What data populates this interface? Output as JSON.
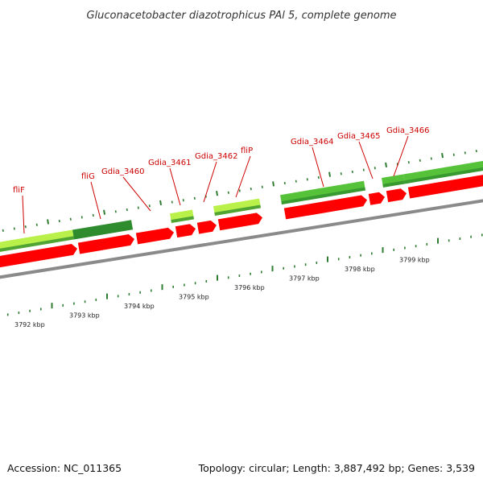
{
  "header": {
    "title": "Gluconacetobacter diazotrophicus PAl 5, complete genome"
  },
  "footer": {
    "accession": "Accession: NC_011365",
    "summary": "Topology: circular; Length: 3,887,492 bp; Genes: 3,539"
  },
  "colors": {
    "label": "#cc0000",
    "tick": "#2e7d32",
    "reverse_strand": "#ff0000",
    "backbone": "#8a8a8a",
    "forward_light": "#b9f04a",
    "forward_mid": "#56c23a",
    "forward_dark": "#2e8b2e"
  },
  "genes": [
    {
      "label": "fliF",
      "strand": "forward",
      "shade": "light"
    },
    {
      "label": "fliG",
      "strand": "forward",
      "shade": "dark"
    },
    {
      "label": "Gdia_3460",
      "strand": "reverse"
    },
    {
      "label": "Gdia_3461",
      "strand": "forward",
      "shade": "light"
    },
    {
      "label": "Gdia_3462",
      "strand": "reverse"
    },
    {
      "label": "fliP",
      "strand": "forward",
      "shade": "light"
    },
    {
      "label": "Gdia_3464",
      "strand": "forward",
      "shade": "mid"
    },
    {
      "label": "Gdia_3465",
      "strand": "reverse"
    },
    {
      "label": "Gdia_3466",
      "strand": "forward",
      "shade": "mid"
    }
  ],
  "scale": {
    "labels": [
      "3792 kbp",
      "3793 kbp",
      "3794 kbp",
      "3795 kbp",
      "3796 kbp",
      "3797 kbp",
      "3798 kbp",
      "3799 kbp"
    ]
  },
  "icons": {
    "backbone": "genome-backbone-arc",
    "forward": "forward-strand-feature",
    "reverse": "reverse-strand-arrow"
  }
}
